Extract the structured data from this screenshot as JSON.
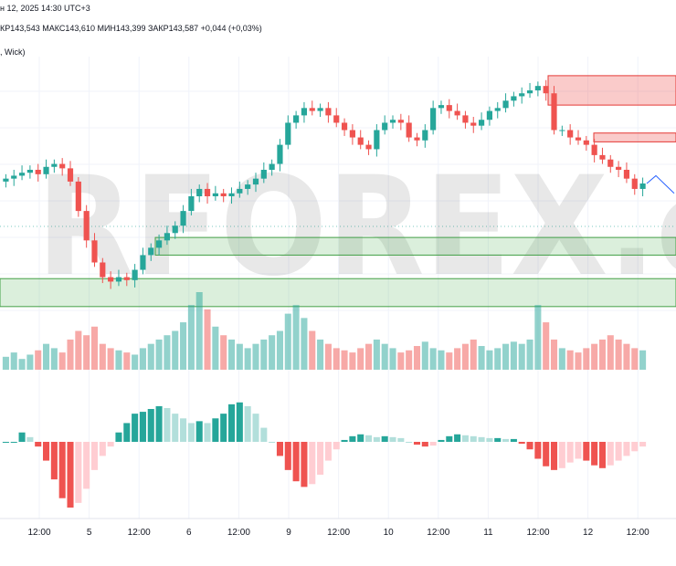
{
  "header": {
    "line1": "н 12, 2025 14:30 UTC+3",
    "line2": "КР143,543  МАКС143,610  МИН143,399  ЗАКР143,587  +0,044 (+0,03%)",
    "line3": ", Wick)"
  },
  "watermark": "RFOREX.c",
  "colors": {
    "up": "#26a69a",
    "down": "#ef5350",
    "up_light": "#b2dfdb",
    "down_light": "#ffcdd2",
    "projection": "#2962ff"
  },
  "x_axis": {
    "labels": [
      "12:00",
      "5",
      "12:00",
      "6",
      "12:00",
      "9",
      "12:00",
      "10",
      "12:00",
      "11",
      "12:00",
      "12",
      "12:00"
    ]
  },
  "chart_data": {
    "type": "candlestick",
    "symbol_hint": "FX pair, 30-minute candles",
    "price_range_estimate": [
      142.6,
      144.4
    ],
    "close_series": [
      143.62,
      143.64,
      143.66,
      143.68,
      143.65,
      143.7,
      143.72,
      143.69,
      143.6,
      143.4,
      143.2,
      143.05,
      142.95,
      142.92,
      142.95,
      142.93,
      143.0,
      143.1,
      143.15,
      143.2,
      143.25,
      143.3,
      143.4,
      143.5,
      143.55,
      143.5,
      143.52,
      143.5,
      143.52,
      143.55,
      143.58,
      143.62,
      143.68,
      143.72,
      143.85,
      144.0,
      144.05,
      144.1,
      144.08,
      144.1,
      144.05,
      144.0,
      143.95,
      143.9,
      143.85,
      143.82,
      143.95,
      144.0,
      144.02,
      144.0,
      143.9,
      143.88,
      143.95,
      144.1,
      144.12,
      144.08,
      144.05,
      144.0,
      143.98,
      144.02,
      144.08,
      144.1,
      144.15,
      144.18,
      144.2,
      144.22,
      144.25,
      144.2,
      143.95,
      143.95,
      143.9,
      143.88,
      143.85,
      143.78,
      143.75,
      143.7,
      143.68,
      143.62,
      143.55,
      143.587
    ],
    "volume_series": [
      6,
      8,
      5,
      7,
      9,
      12,
      10,
      8,
      14,
      18,
      16,
      20,
      12,
      10,
      9,
      8,
      7,
      10,
      12,
      14,
      16,
      18,
      22,
      30,
      36,
      28,
      20,
      16,
      14,
      12,
      10,
      12,
      14,
      16,
      18,
      26,
      30,
      24,
      18,
      14,
      12,
      10,
      9,
      8,
      10,
      12,
      14,
      12,
      10,
      8,
      9,
      11,
      13,
      10,
      9,
      8,
      10,
      12,
      14,
      11,
      9,
      10,
      12,
      13,
      12,
      14,
      30,
      22,
      14,
      10,
      9,
      8,
      10,
      12,
      14,
      16,
      14,
      12,
      10,
      9
    ],
    "oscillator_series": [
      0,
      0,
      0.1,
      0.05,
      -0.05,
      -0.2,
      -0.4,
      -0.6,
      -0.7,
      -0.65,
      -0.5,
      -0.3,
      -0.15,
      -0.05,
      0.1,
      0.2,
      0.3,
      0.32,
      0.35,
      0.38,
      0.36,
      0.3,
      0.25,
      0.2,
      0.22,
      0.2,
      0.25,
      0.3,
      0.4,
      0.42,
      0.38,
      0.3,
      0.15,
      0.0,
      -0.15,
      -0.3,
      -0.42,
      -0.48,
      -0.45,
      -0.35,
      -0.2,
      -0.08,
      0.02,
      0.06,
      0.08,
      0.07,
      0.05,
      0.06,
      0.05,
      0.04,
      0.0,
      -0.03,
      -0.05,
      -0.04,
      0.02,
      0.06,
      0.08,
      0.07,
      0.06,
      0.05,
      0.04,
      0.04,
      0.03,
      0.03,
      -0.02,
      -0.08,
      -0.18,
      -0.26,
      -0.3,
      -0.28,
      -0.22,
      -0.18,
      -0.2,
      -0.25,
      -0.28,
      -0.25,
      -0.2,
      -0.15,
      -0.1,
      -0.05
    ],
    "zones": [
      {
        "kind": "supply",
        "price_top": 144.32,
        "price_bottom": 144.12
      },
      {
        "kind": "supply",
        "price_top": 143.93,
        "price_bottom": 143.87
      },
      {
        "kind": "demand",
        "price_top": 143.22,
        "price_bottom": 143.1
      },
      {
        "kind": "demand",
        "price_top": 142.94,
        "price_bottom": 142.75
      }
    ],
    "projection": [
      143.587,
      143.64,
      143.58,
      143.52
    ]
  }
}
